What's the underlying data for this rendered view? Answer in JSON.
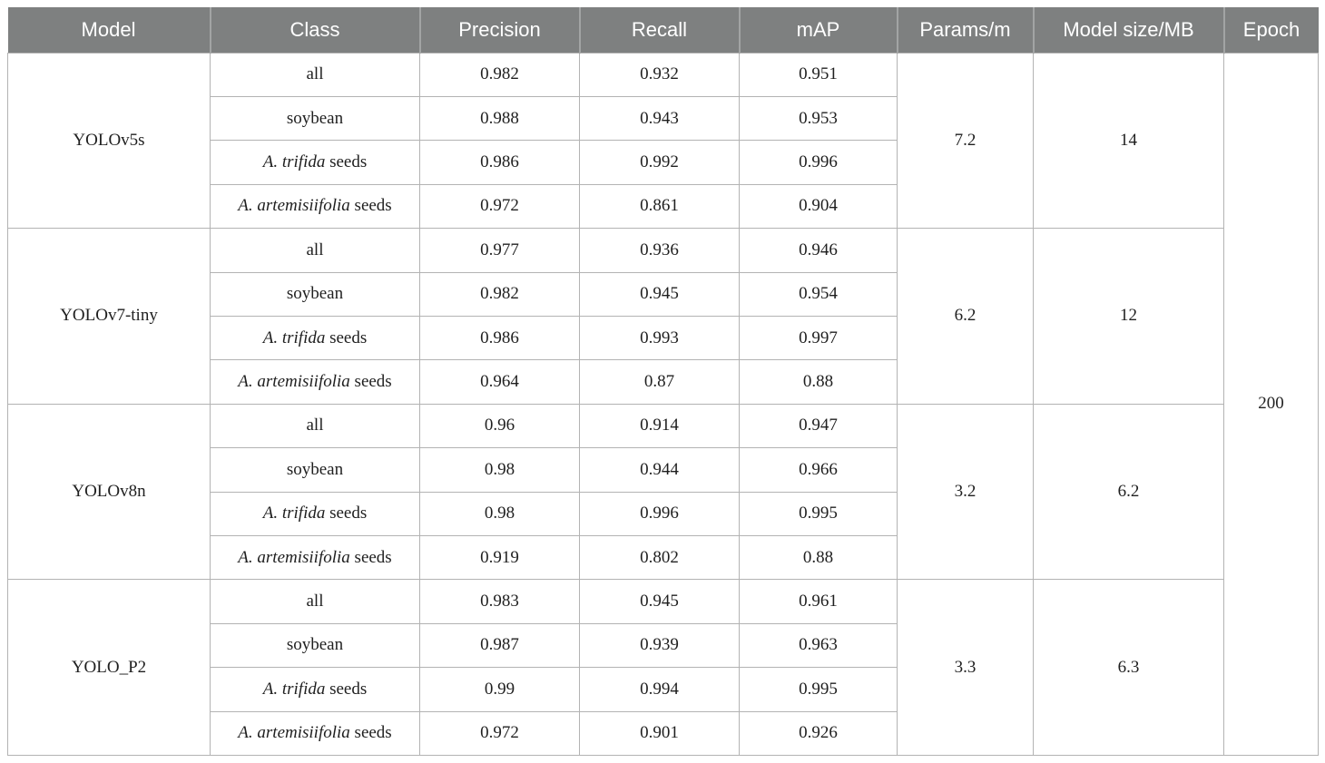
{
  "colors": {
    "header_bg": "#7e8080",
    "header_text": "#ffffff",
    "body_text": "#1f1f1f",
    "grid_line": "#b3b3b3",
    "header_separator": "#a2a4a4"
  },
  "table": {
    "headers": [
      "Model",
      "Class",
      "Precision",
      "Recall",
      "mAP",
      "Params/m",
      "Model size/MB",
      "Epoch"
    ],
    "epoch": "200",
    "groups": [
      {
        "model": "YOLOv5s",
        "params": "7.2",
        "size": "14",
        "rows": [
          {
            "class_italic": "",
            "class_rest": "all",
            "precision": "0.982",
            "recall": "0.932",
            "map": "0.951"
          },
          {
            "class_italic": "",
            "class_rest": "soybean",
            "precision": "0.988",
            "recall": "0.943",
            "map": "0.953"
          },
          {
            "class_italic": "A. trifida",
            "class_rest": " seeds",
            "precision": "0.986",
            "recall": "0.992",
            "map": "0.996"
          },
          {
            "class_italic": "A. artemisiifolia",
            "class_rest": " seeds",
            "precision": "0.972",
            "recall": "0.861",
            "map": "0.904"
          }
        ]
      },
      {
        "model": "YOLOv7-tiny",
        "params": "6.2",
        "size": "12",
        "rows": [
          {
            "class_italic": "",
            "class_rest": "all",
            "precision": "0.977",
            "recall": "0.936",
            "map": "0.946"
          },
          {
            "class_italic": "",
            "class_rest": "soybean",
            "precision": "0.982",
            "recall": "0.945",
            "map": "0.954"
          },
          {
            "class_italic": "A. trifida",
            "class_rest": " seeds",
            "precision": "0.986",
            "recall": "0.993",
            "map": "0.997"
          },
          {
            "class_italic": "A. artemisiifolia",
            "class_rest": " seeds",
            "precision": "0.964",
            "recall": "0.87",
            "map": "0.88"
          }
        ]
      },
      {
        "model": "YOLOv8n",
        "params": "3.2",
        "size": "6.2",
        "rows": [
          {
            "class_italic": "",
            "class_rest": "all",
            "precision": "0.96",
            "recall": "0.914",
            "map": "0.947"
          },
          {
            "class_italic": "",
            "class_rest": "soybean",
            "precision": "0.98",
            "recall": "0.944",
            "map": "0.966"
          },
          {
            "class_italic": "A. trifida",
            "class_rest": " seeds",
            "precision": "0.98",
            "recall": "0.996",
            "map": "0.995"
          },
          {
            "class_italic": "A. artemisiifolia",
            "class_rest": " seeds",
            "precision": "0.919",
            "recall": "0.802",
            "map": "0.88"
          }
        ]
      },
      {
        "model": "YOLO_P2",
        "params": "3.3",
        "size": "6.3",
        "rows": [
          {
            "class_italic": "",
            "class_rest": "all",
            "precision": "0.983",
            "recall": "0.945",
            "map": "0.961"
          },
          {
            "class_italic": "",
            "class_rest": "soybean",
            "precision": "0.987",
            "recall": "0.939",
            "map": "0.963"
          },
          {
            "class_italic": "A. trifida",
            "class_rest": " seeds",
            "precision": "0.99",
            "recall": "0.994",
            "map": "0.995"
          },
          {
            "class_italic": "A. artemisiifolia",
            "class_rest": " seeds",
            "precision": "0.972",
            "recall": "0.901",
            "map": "0.926"
          }
        ]
      }
    ]
  }
}
